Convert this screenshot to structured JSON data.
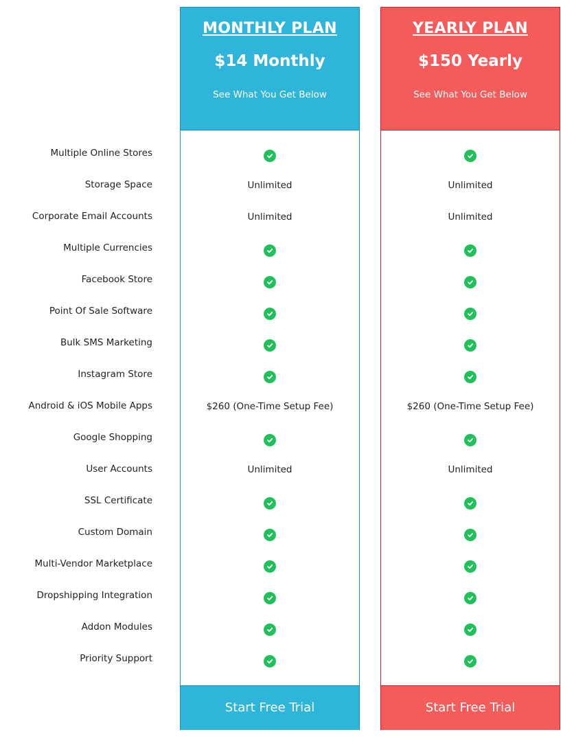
{
  "features": [
    "Multiple Online Stores",
    "Storage Space",
    "Corporate Email Accounts",
    "Multiple Currencies",
    "Facebook Store",
    "Point Of Sale Software",
    "Bulk SMS Marketing",
    "Instagram Store",
    "Android & iOS Mobile Apps",
    "Google Shopping",
    "User Accounts",
    "SSL Certificate",
    "Custom Domain",
    "Multi-Vendor Marketplace",
    "Dropshipping Integration",
    "Addon Modules",
    "Priority Support"
  ],
  "plans": [
    {
      "title": "MONTHLY PLAN",
      "price": "$14 Monthly",
      "subtitle": "See What You Get Below",
      "cta": "Start Free Trial",
      "color": "#2eb5d9",
      "values": [
        "check",
        "Unlimited",
        "Unlimited",
        "check",
        "check",
        "check",
        "check",
        "check",
        "$260 (One-Time Setup Fee)",
        "check",
        "Unlimited",
        "check",
        "check",
        "check",
        "check",
        "check",
        "check"
      ]
    },
    {
      "title": "YEARLY PLAN",
      "price": "$150 Yearly",
      "subtitle": "See What You Get Below",
      "cta": "Start Free Trial",
      "color": "#f45b5b",
      "values": [
        "check",
        "Unlimited",
        "Unlimited",
        "check",
        "check",
        "check",
        "check",
        "check",
        "$260 (One-Time Setup Fee)",
        "check",
        "Unlimited",
        "check",
        "check",
        "check",
        "check",
        "check",
        "check"
      ]
    }
  ],
  "check_color": "#22c05a"
}
